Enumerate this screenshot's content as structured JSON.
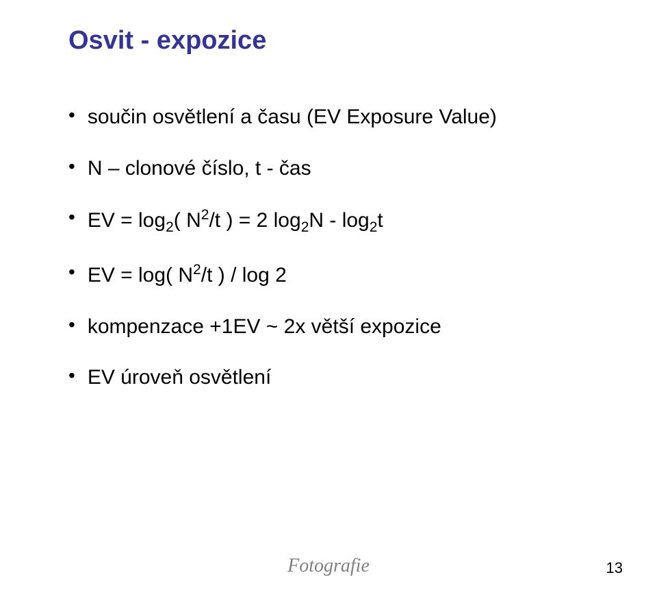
{
  "title": "Osvit - expozice",
  "bullets": [
    {
      "text": "součin osvětlení a času (EV Exposure Value)"
    },
    {
      "text": "N – clonové číslo, t - čas"
    },
    {
      "html": "EV = log<span class='sub'>2</span>( N<span class='sup'>2</span>/t ) = 2 log<span class='sub'>2</span>N - log<span class='sub'>2</span>t"
    },
    {
      "html": "EV = log( N<span class='sup'>2</span>/t ) / log 2"
    },
    {
      "text": "kompenzace +1EV ~ 2x větší expozice"
    },
    {
      "text": "EV  úroveň osvětlení"
    }
  ],
  "footer": "Fotografie",
  "page_number": "13",
  "colors": {
    "title": "#333399",
    "body_text": "#000000",
    "footer_text": "#808080",
    "background": "#ffffff"
  },
  "fonts": {
    "title_size_pt": 28,
    "body_size_pt": 22,
    "footer_size_pt": 21,
    "title_weight": "bold",
    "footer_style": "italic"
  }
}
